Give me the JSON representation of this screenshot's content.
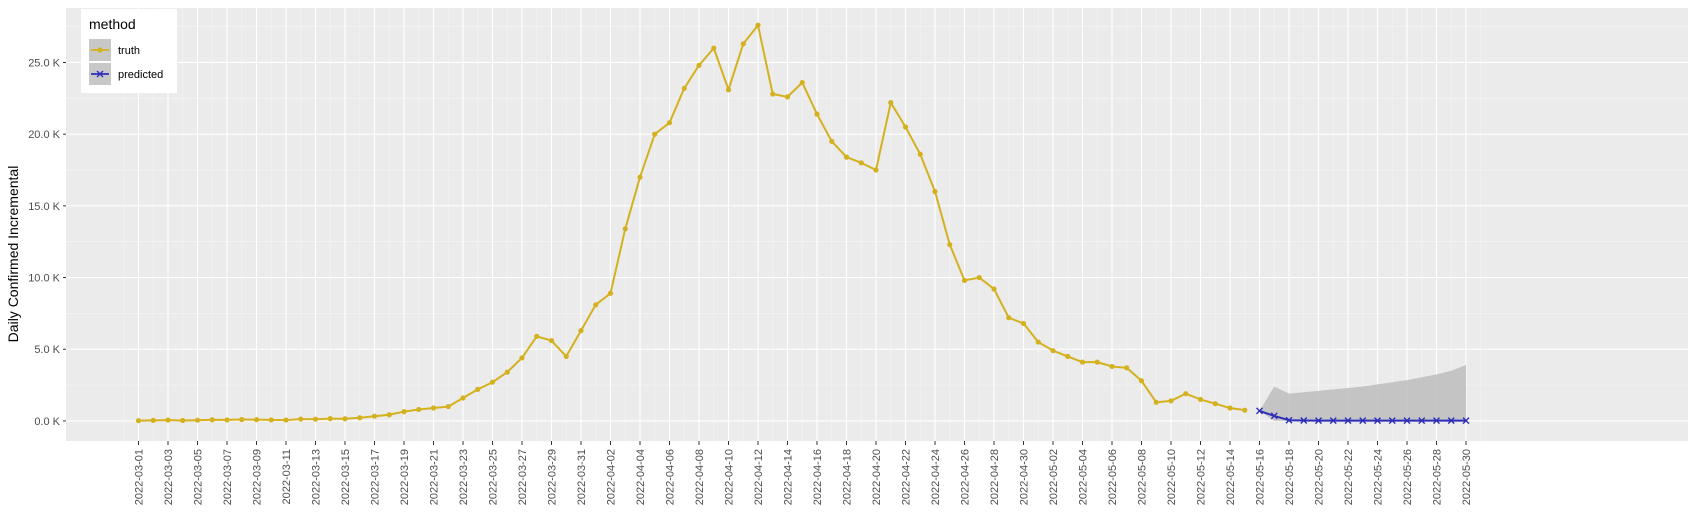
{
  "chart_data": {
    "type": "line",
    "ylabel": "Daily Confirmed Incremental",
    "xlabel": "",
    "ylim": [
      -1400,
      28800
    ],
    "y_ticks": [
      0,
      5000,
      10000,
      15000,
      20000,
      25000
    ],
    "y_tick_labels": [
      "0.0 K",
      "5.0 K",
      "10.0 K",
      "15.0 K",
      "20.0 K",
      "25.0 K"
    ],
    "x_start": "2022-03-01",
    "x_tick_labels": [
      "2022-03-01",
      "2022-03-03",
      "2022-03-05",
      "2022-03-07",
      "2022-03-09",
      "2022-03-11",
      "2022-03-13",
      "2022-03-15",
      "2022-03-17",
      "2022-03-19",
      "2022-03-21",
      "2022-03-23",
      "2022-03-25",
      "2022-03-27",
      "2022-03-29",
      "2022-03-31",
      "2022-04-02",
      "2022-04-04",
      "2022-04-06",
      "2022-04-08",
      "2022-04-10",
      "2022-04-12",
      "2022-04-14",
      "2022-04-16",
      "2022-04-18",
      "2022-04-20",
      "2022-04-22",
      "2022-04-24",
      "2022-04-26",
      "2022-04-28",
      "2022-04-30",
      "2022-05-02",
      "2022-05-04",
      "2022-05-06",
      "2022-05-08",
      "2022-05-10",
      "2022-05-12",
      "2022-05-14",
      "2022-05-16",
      "2022-05-18",
      "2022-05-20",
      "2022-05-22",
      "2022-05-24",
      "2022-05-26",
      "2022-05-28",
      "2022-05-30"
    ],
    "legend": {
      "title": "method",
      "position": "top-left",
      "entries": [
        "truth",
        "predicted"
      ]
    },
    "series": [
      {
        "name": "truth",
        "color": "#D4B11F",
        "marker": "circle",
        "start": "2022-03-01",
        "values": [
          20,
          40,
          60,
          30,
          50,
          80,
          70,
          100,
          90,
          70,
          60,
          130,
          120,
          160,
          150,
          220,
          330,
          430,
          650,
          800,
          900,
          1000,
          1600,
          2200,
          2700,
          3400,
          4400,
          5900,
          5600,
          4500,
          6300,
          8100,
          8900,
          13400,
          17000,
          20000,
          20800,
          23200,
          24800,
          26000,
          23100,
          26300,
          27600,
          22800,
          22600,
          23600,
          21400,
          19500,
          18400,
          18000,
          17500,
          22200,
          20500,
          18600,
          16000,
          12300,
          9800,
          10000,
          9200,
          7200,
          6800,
          5500,
          4900,
          4500,
          4100,
          4100,
          3800,
          3700,
          2800,
          1300,
          1400,
          1900,
          1500,
          1200,
          900,
          750
        ]
      },
      {
        "name": "predicted",
        "color": "#2E2EB8",
        "marker": "x",
        "start": "2022-05-16",
        "values": [
          700,
          350,
          50,
          30,
          20,
          20,
          20,
          20,
          20,
          20,
          20,
          20,
          20,
          20,
          20
        ]
      }
    ],
    "ribbon": {
      "name": "prediction interval",
      "color": "#BDBDBD",
      "start": "2022-05-16",
      "lower": [
        700,
        0,
        0,
        0,
        0,
        0,
        0,
        0,
        0,
        0,
        0,
        0,
        0,
        0,
        0
      ],
      "upper": [
        700,
        2400,
        1900,
        2000,
        2100,
        2200,
        2300,
        2400,
        2550,
        2700,
        2850,
        3050,
        3250,
        3500,
        3900
      ]
    }
  }
}
